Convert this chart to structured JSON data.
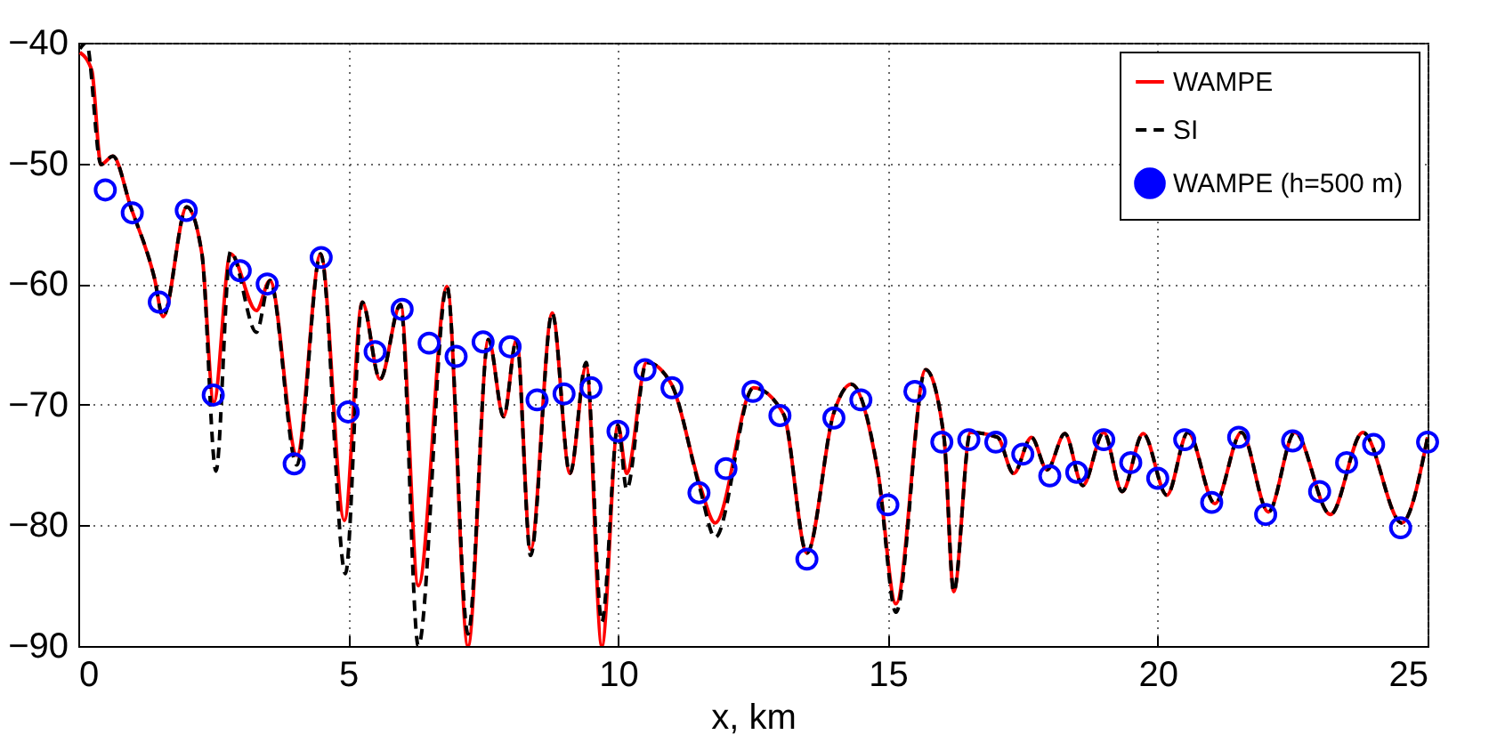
{
  "chart_data": {
    "type": "line",
    "xlabel": "x, km",
    "xlim": [
      0,
      25
    ],
    "xticks": [
      0,
      5,
      10,
      15,
      20,
      25
    ],
    "ylim": [
      -90,
      -40
    ],
    "yticks": [
      -90,
      -80,
      -70,
      -60,
      -50,
      -40
    ],
    "grid": true,
    "legend": "top right",
    "series": [
      {
        "name": "WAMPE",
        "color": "#ff0000",
        "line_style": "solid",
        "x": [
          0.03,
          0.25,
          0.42,
          0.64,
          0.97,
          1.41,
          1.57,
          2.01,
          2.29,
          2.51,
          2.82,
          3.3,
          3.55,
          4.05,
          4.49,
          4.93,
          5.26,
          5.59,
          5.97,
          6.3,
          6.83,
          7.22,
          7.6,
          7.88,
          8.12,
          8.38,
          8.78,
          9.11,
          9.41,
          9.7,
          10.0,
          10.16,
          10.53,
          10.99,
          11.52,
          11.8,
          12.51,
          13.07,
          13.5,
          13.99,
          14.32,
          14.82,
          15.15,
          15.7,
          16.04,
          16.22,
          16.53,
          17.03,
          17.33,
          17.66,
          17.95,
          18.28,
          18.61,
          19.0,
          19.34,
          19.73,
          20.17,
          20.56,
          21.06,
          21.55,
          22.05,
          22.54,
          23.2,
          23.8,
          24.52,
          25.0
        ],
        "values": [
          -40.8,
          -42.3,
          -50.1,
          -49.4,
          -53.6,
          -59.5,
          -62.7,
          -53.6,
          -57.5,
          -69.8,
          -57.5,
          -62.2,
          -59.7,
          -74.2,
          -57.5,
          -79.6,
          -61.5,
          -67.9,
          -61.7,
          -85,
          -60.2,
          -90,
          -64.6,
          -71,
          -64.6,
          -82,
          -62.4,
          -75.7,
          -66.8,
          -90,
          -71.7,
          -75.7,
          -66.5,
          -68.3,
          -76.7,
          -79.8,
          -68.6,
          -70.8,
          -82.3,
          -70.8,
          -68.3,
          -75.7,
          -86.5,
          -67.1,
          -72.7,
          -85.5,
          -72.3,
          -72.7,
          -75.7,
          -72.7,
          -75.4,
          -72.4,
          -76.7,
          -72.3,
          -77.2,
          -72.4,
          -77.5,
          -72.3,
          -78.2,
          -72.3,
          -78.9,
          -72.3,
          -79.1,
          -72.3,
          -79.8,
          -72.7
        ]
      },
      {
        "name": "SI",
        "color": "#000000",
        "line_style": "dashed",
        "x": [
          0.03,
          0.15,
          0.42,
          0.64,
          0.97,
          1.41,
          1.57,
          2.01,
          2.29,
          2.55,
          2.82,
          3.3,
          3.55,
          4.05,
          4.49,
          4.95,
          5.26,
          5.59,
          5.97,
          6.3,
          6.83,
          7.22,
          7.6,
          7.88,
          8.12,
          8.38,
          8.78,
          9.11,
          9.41,
          9.7,
          10.0,
          10.16,
          10.53,
          10.99,
          11.52,
          11.8,
          12.51,
          13.07,
          13.5,
          13.99,
          14.32,
          14.82,
          15.15,
          15.7,
          16.04,
          16.22,
          16.53,
          17.03,
          17.33,
          17.66,
          17.95,
          18.28,
          18.61,
          19.0,
          19.34,
          19.73,
          20.17,
          20.56,
          21.06,
          21.55,
          22.05,
          22.54,
          23.2,
          23.8,
          24.52,
          25.0
        ],
        "values": [
          -40.5,
          -40,
          -50.1,
          -49.4,
          -53.6,
          -59.5,
          -62.7,
          -53.6,
          -57.5,
          -75.5,
          -57.3,
          -64,
          -59.7,
          -75,
          -57.5,
          -84,
          -61.5,
          -67.9,
          -61.7,
          -90,
          -60.2,
          -89,
          -64.6,
          -71,
          -64.6,
          -82.5,
          -62.4,
          -75.7,
          -66.5,
          -88,
          -71.7,
          -77,
          -66.5,
          -68.3,
          -77,
          -81,
          -68.6,
          -70.8,
          -82.3,
          -70.8,
          -68.3,
          -75.7,
          -87.2,
          -67.1,
          -72.7,
          -85.5,
          -72.3,
          -72.7,
          -75.7,
          -72.7,
          -75.4,
          -72.4,
          -76.7,
          -72.3,
          -77.2,
          -72.4,
          -77.5,
          -72.3,
          -78.2,
          -72.3,
          -78.9,
          -72.3,
          -79.1,
          -72.3,
          -79.8,
          -72.7
        ]
      },
      {
        "name": "WAMPE (h=500 m)",
        "type": "scatter",
        "color": "#0000ff",
        "marker": "circle",
        "x": [
          0.5,
          1.0,
          1.5,
          2.0,
          2.5,
          3.0,
          3.5,
          4.0,
          4.5,
          5.0,
          5.5,
          6.0,
          6.5,
          7.0,
          7.5,
          8.0,
          8.5,
          9.0,
          9.5,
          10.0,
          10.5,
          11.0,
          11.5,
          12.0,
          12.5,
          13.0,
          13.5,
          14.0,
          14.5,
          15.0,
          15.5,
          16.0,
          16.5,
          17.0,
          17.5,
          18.0,
          18.5,
          19.0,
          19.5,
          20.0,
          20.5,
          21.0,
          21.5,
          22.0,
          22.5,
          23.0,
          23.5,
          24.0,
          24.5,
          25.0
        ],
        "values": [
          -52.2,
          -54.1,
          -61.5,
          -53.9,
          -69.2,
          -58.9,
          -60.0,
          -74.9,
          -57.8,
          -70.6,
          -65.6,
          -62.1,
          -64.9,
          -66.0,
          -64.8,
          -65.2,
          -69.6,
          -69.1,
          -68.6,
          -72.2,
          -67.1,
          -68.6,
          -77.3,
          -75.3,
          -68.9,
          -70.9,
          -82.8,
          -71.1,
          -69.6,
          -78.3,
          -68.9,
          -73.1,
          -72.9,
          -73.1,
          -74.1,
          -75.9,
          -75.6,
          -72.9,
          -74.8,
          -76.1,
          -72.9,
          -78.1,
          -72.7,
          -79.1,
          -73.0,
          -77.2,
          -74.8,
          -73.3,
          -80.2,
          -73.1
        ]
      }
    ]
  }
}
